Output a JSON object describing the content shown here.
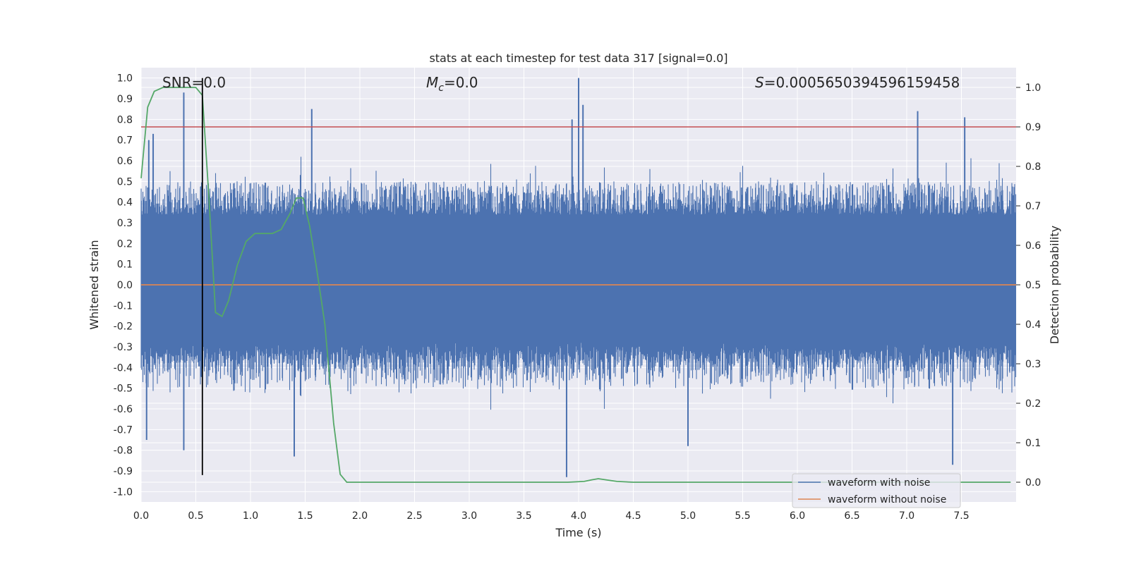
{
  "chart_data": {
    "type": "line",
    "title": "stats at each timestep for test data 317 [signal=0.0]",
    "xlabel": "Time (s)",
    "ylabel_left": "Whitened strain",
    "ylabel_right": "Detection probability",
    "xlim": [
      0.0,
      8.0
    ],
    "ylim_left": [
      -1.05,
      1.05
    ],
    "ylim_right": [
      -0.05,
      1.05
    ],
    "x_ticks": [
      "0.0",
      "0.5",
      "1.0",
      "1.5",
      "2.0",
      "2.5",
      "3.0",
      "3.5",
      "4.0",
      "4.5",
      "5.0",
      "5.5",
      "6.0",
      "6.5",
      "7.0",
      "7.5"
    ],
    "y_left_ticks": [
      "1.0",
      "0.9",
      "0.8",
      "0.7",
      "0.6",
      "0.5",
      "0.4",
      "0.3",
      "0.2",
      "0.1",
      "0.0",
      "-0.1",
      "-0.2",
      "-0.3",
      "-0.4",
      "-0.5",
      "-0.6",
      "-0.7",
      "-0.8",
      "-0.9",
      "-1.0"
    ],
    "y_right_ticks": [
      "1.0",
      "0.9",
      "0.8",
      "0.7",
      "0.6",
      "0.5",
      "0.4",
      "0.3",
      "0.2",
      "0.1",
      "0.0"
    ],
    "annotations": {
      "snr": "SNR=0.0",
      "mc_symbol": "M",
      "mc_sub": "c",
      "mc_value": "=0.0",
      "s_symbol": "S",
      "s_value": "=0.0005650394596159458"
    },
    "grid": true,
    "legend_position": "lower-right",
    "series": [
      {
        "name": "waveform with noise",
        "color": "#4c72b0",
        "axis": "left",
        "description_values": "dense noise about 0, mostly within ±0.45",
        "spikes": [
          {
            "x": 0.39,
            "y": 0.93
          },
          {
            "x": 0.39,
            "y": -0.8
          },
          {
            "x": 1.56,
            "y": 0.85
          },
          {
            "x": 1.4,
            "y": -0.83
          },
          {
            "x": 3.89,
            "y": -0.93
          },
          {
            "x": 4.0,
            "y": 1.0
          },
          {
            "x": 4.04,
            "y": 0.87
          },
          {
            "x": 3.94,
            "y": 0.8
          },
          {
            "x": 7.1,
            "y": 0.84
          },
          {
            "x": 7.42,
            "y": -0.87
          },
          {
            "x": 7.53,
            "y": 0.81
          },
          {
            "x": 5.0,
            "y": -0.78
          },
          {
            "x": 0.07,
            "y": 0.7
          },
          {
            "x": 0.05,
            "y": -0.75
          },
          {
            "x": 0.11,
            "y": 0.73
          }
        ]
      },
      {
        "name": "waveform without noise",
        "color": "#dd8452",
        "axis": "left",
        "x": [
          0.0,
          8.0
        ],
        "y": [
          0.0,
          0.0
        ]
      },
      {
        "name": "detection probability",
        "color": "#55a868",
        "axis": "right",
        "x": [
          0.0,
          0.06,
          0.12,
          0.2,
          0.3,
          0.4,
          0.5,
          0.56,
          0.62,
          0.68,
          0.74,
          0.8,
          0.88,
          0.96,
          1.04,
          1.12,
          1.2,
          1.28,
          1.36,
          1.42,
          1.48,
          1.54,
          1.6,
          1.68,
          1.76,
          1.82,
          1.88,
          1.96,
          2.5,
          3.0,
          3.5,
          3.9,
          4.05,
          4.12,
          4.18,
          4.25,
          4.35,
          4.5,
          5.0,
          6.0,
          7.0,
          7.95
        ],
        "y": [
          0.77,
          0.95,
          0.99,
          1.0,
          1.0,
          1.0,
          1.0,
          0.98,
          0.72,
          0.43,
          0.42,
          0.46,
          0.55,
          0.61,
          0.63,
          0.63,
          0.63,
          0.64,
          0.68,
          0.72,
          0.72,
          0.65,
          0.55,
          0.4,
          0.15,
          0.02,
          0.0,
          0.0,
          0.0,
          0.0,
          0.0,
          0.0,
          0.002,
          0.006,
          0.009,
          0.006,
          0.002,
          0.0,
          0.0,
          0.0,
          0.0,
          0.0
        ]
      },
      {
        "name": "threshold",
        "color": "#c44e52",
        "axis": "right",
        "x": [
          0.0,
          8.0
        ],
        "y": [
          0.9,
          0.9
        ]
      },
      {
        "name": "time marker",
        "color": "#000000",
        "axis": "left",
        "x": [
          0.56,
          0.56
        ],
        "y": [
          -0.92,
          1.0
        ]
      }
    ],
    "legend": [
      "waveform with noise",
      "waveform without noise"
    ]
  }
}
